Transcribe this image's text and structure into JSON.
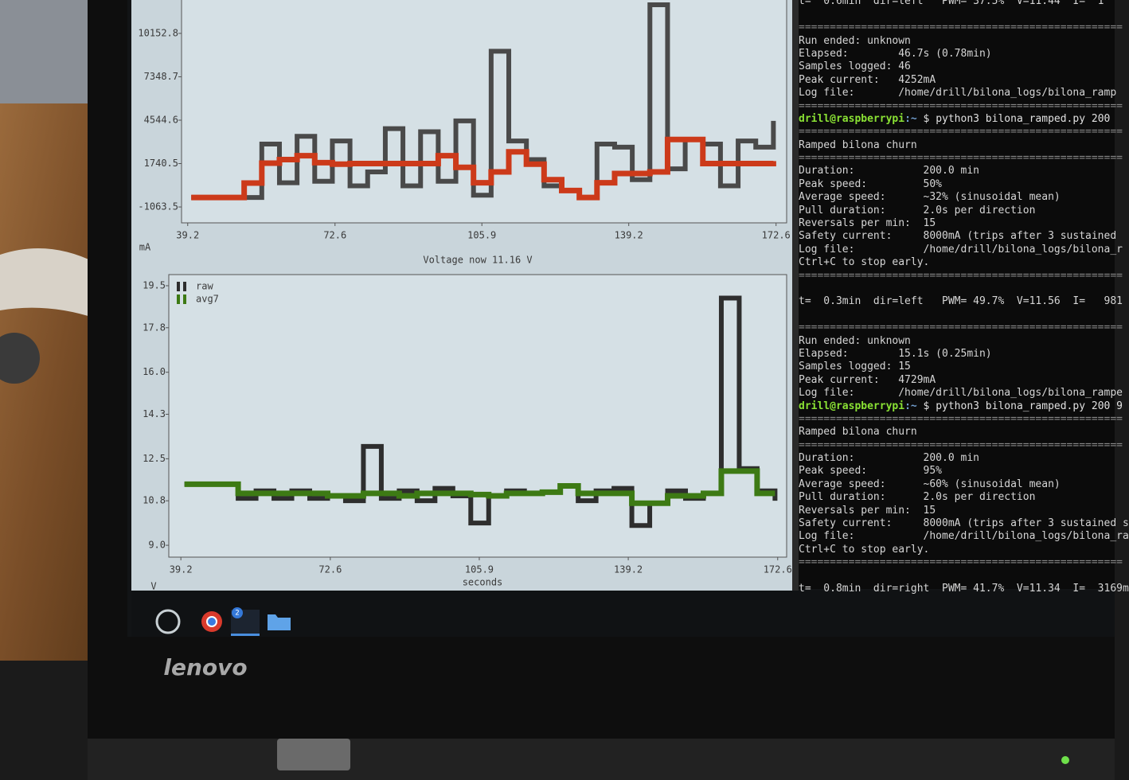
{
  "chart_data": [
    {
      "type": "line",
      "ylabel": "mA",
      "x": [
        40,
        44,
        48,
        52,
        56,
        60,
        64,
        68,
        72,
        76,
        80,
        84,
        88,
        92,
        96,
        100,
        104,
        108,
        112,
        116,
        120,
        124,
        128,
        132,
        136,
        140,
        144,
        148,
        152,
        156,
        160,
        164,
        168,
        172
      ],
      "xlim": [
        37.8,
        175.0
      ],
      "xticks": [
        39.2,
        72.6,
        105.9,
        139.2,
        172.6
      ],
      "ylim": [
        -2090,
        12310
      ],
      "yticks": [
        10152.8,
        7348.7,
        4544.6,
        1740.5,
        -1063.5
      ],
      "series": [
        {
          "color": "#4a4a4a",
          "values": [
            -450,
            -450,
            -450,
            -450,
            3000,
            500,
            3500,
            600,
            3200,
            300,
            1200,
            4000,
            300,
            3800,
            600,
            4500,
            -300,
            9000,
            3200,
            2000,
            300,
            0,
            -450,
            3000,
            2800,
            700,
            12000,
            1400,
            3300,
            3000,
            300,
            3200,
            2800,
            4500
          ]
        },
        {
          "color": "#cc3a1a",
          "values": [
            -450,
            -450,
            -450,
            480,
            1767,
            2000,
            2250,
            1800,
            1700,
            1740,
            1740,
            1740,
            1740,
            1740,
            2250,
            1500,
            500,
            1200,
            2500,
            1700,
            700,
            0,
            -450,
            500,
            1100,
            1100,
            1200,
            3300,
            3300,
            1740,
            1740,
            1740,
            1740,
            1900
          ]
        }
      ]
    },
    {
      "type": "line",
      "title": "Voltage now 11.16 V",
      "xlabel": "seconds",
      "ylabel": "V",
      "legend": "upper left",
      "x": [
        40,
        44,
        48,
        52,
        56,
        60,
        64,
        68,
        72,
        76,
        80,
        84,
        88,
        92,
        96,
        100,
        104,
        108,
        112,
        116,
        120,
        124,
        128,
        132,
        136,
        140,
        144,
        148,
        152,
        156,
        160,
        164,
        168,
        172
      ],
      "xlim": [
        36.5,
        174.6
      ],
      "xticks": [
        39.2,
        72.6,
        105.9,
        139.2,
        172.6
      ],
      "ylim": [
        8.52,
        19.95
      ],
      "yticks": [
        19.5,
        17.8,
        {
          "value": 16,
          "label": "16.0"
        },
        14.3,
        12.5,
        10.8,
        {
          "value": 9,
          "label": "9.0"
        }
      ],
      "series": [
        {
          "name": "raw",
          "color": "#2e2e2e",
          "values": [
            11.47,
            11.47,
            11.47,
            10.9,
            11.2,
            10.9,
            11.2,
            10.9,
            11.0,
            10.8,
            13.0,
            10.9,
            11.2,
            10.8,
            11.3,
            11.0,
            9.9,
            11.0,
            11.2,
            11.1,
            11.15,
            11.4,
            10.8,
            11.2,
            11.3,
            9.8,
            10.7,
            11.2,
            10.9,
            11.1,
            19.0,
            12.1,
            11.2,
            10.8
          ]
        },
        {
          "name": "avg7",
          "color": "#3d7a14",
          "values": [
            11.47,
            11.47,
            11.47,
            11.1,
            11.1,
            11.1,
            11.1,
            11.1,
            11.0,
            11.0,
            11.1,
            11.1,
            11.0,
            11.1,
            11.1,
            11.1,
            11.05,
            11.0,
            11.1,
            11.1,
            11.15,
            11.4,
            11.1,
            11.1,
            11.1,
            10.7,
            10.7,
            11.0,
            11.0,
            11.1,
            12.0,
            12.0,
            11.1,
            11.1
          ]
        }
      ]
    }
  ],
  "terminal": {
    "lines": [
      {
        "status": "t=  0.6min  dir=left   PWM= 37.5%  V=11.44  I=  1"
      },
      "====================================================",
      "Run ended: unknown",
      "Elapsed:        46.7s (0.78min)",
      "Samples logged: 46",
      "Peak current:   4252mA",
      "Log file:       /home/drill/bilona_logs/bilona_ramp",
      "====================================================",
      {
        "user": "drill@raspberrypi",
        "dir": ":~",
        "cmd": " $ python3 bilona_ramped.py 200"
      },
      "====================================================",
      "Ramped bilona churn",
      "====================================================",
      "Duration:           200.0 min",
      "Peak speed:         50%",
      "Average speed:      ~32% (sinusoidal mean)",
      "Pull duration:      2.0s per direction",
      "Reversals per min:  15",
      "Safety current:     8000mA (trips after 3 sustained",
      "Log file:           /home/drill/bilona_logs/bilona_r",
      "Ctrl+C to stop early.",
      "====================================================",
      {
        "status": "t=  0.3min  dir=left   PWM= 49.7%  V=11.56  I=   981"
      },
      "====================================================",
      "Run ended: unknown",
      "Elapsed:        15.1s (0.25min)",
      "Samples logged: 15",
      "Peak current:   4729mA",
      "Log file:       /home/drill/bilona_logs/bilona_rampe",
      {
        "user": "drill@raspberrypi",
        "dir": ":~",
        "cmd": " $ python3 bilona_ramped.py 200 9"
      },
      "====================================================",
      "Ramped bilona churn",
      "====================================================",
      "Duration:           200.0 min",
      "Peak speed:         95%",
      "Average speed:      ~60% (sinusoidal mean)",
      "Pull duration:      2.0s per direction",
      "Reversals per min:  15",
      "Safety current:     8000mA (trips after 3 sustained s",
      "Log file:           /home/drill/bilona_logs/bilona_ra",
      "Ctrl+C to stop early.",
      "====================================================",
      {
        "status": "t=  0.8min  dir=right  PWM= 41.7%  V=11.34  I=  3169m"
      }
    ]
  },
  "taskbar": {
    "badge": "2"
  },
  "brand": "lenovo"
}
